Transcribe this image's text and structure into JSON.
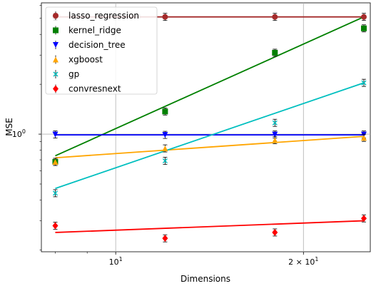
{
  "chart_data": {
    "type": "scatter",
    "xlabel": "Dimensions",
    "ylabel": "MSE",
    "x_scale": "log",
    "y_scale": "log",
    "xlim": [
      7.6,
      25.6
    ],
    "ylim": [
      0.195,
      6.2
    ],
    "x_ticks": [
      {
        "value": 10,
        "base": "10",
        "exp": "1"
      },
      {
        "value": 20,
        "base": "2 × 10",
        "exp": "1"
      }
    ],
    "y_ticks": [
      {
        "value": 1,
        "base": "10",
        "exp": "0"
      }
    ],
    "grid": true,
    "legend_position": "upper-left",
    "series": [
      {
        "name": "lasso_regression",
        "color": "#a52a2a",
        "marker": "circle",
        "x": [
          8,
          12,
          18,
          25
        ],
        "y": [
          5.1,
          5.1,
          5.1,
          5.1
        ],
        "fit": [
          5.1,
          5.1
        ]
      },
      {
        "name": "kernel_ridge",
        "color": "#008000",
        "marker": "square",
        "x": [
          8,
          12,
          18,
          25
        ],
        "y": [
          0.68,
          1.37,
          3.1,
          4.35
        ],
        "fit": [
          0.74,
          5.1
        ]
      },
      {
        "name": "decision_tree",
        "color": "#0000ff",
        "marker": "triangle-down",
        "x": [
          8,
          12,
          18,
          25
        ],
        "y": [
          0.995,
          0.99,
          0.995,
          0.995
        ],
        "fit": [
          0.99,
          0.99
        ]
      },
      {
        "name": "xgboost",
        "color": "#ffa500",
        "marker": "triangle-up",
        "x": [
          8,
          12,
          18,
          25
        ],
        "y": [
          0.68,
          0.82,
          0.92,
          0.95
        ],
        "fit": [
          0.72,
          0.97
        ]
      },
      {
        "name": "gp",
        "color": "#00bfbf",
        "marker": "x",
        "x": [
          8,
          12,
          18,
          25
        ],
        "y": [
          0.44,
          0.69,
          1.17,
          2.04
        ],
        "fit": [
          0.47,
          2.04
        ]
      },
      {
        "name": "convresnext",
        "color": "#ff0000",
        "marker": "diamond",
        "x": [
          8,
          12,
          18,
          25
        ],
        "y": [
          0.28,
          0.235,
          0.255,
          0.31
        ],
        "fit": [
          0.255,
          0.3
        ]
      }
    ]
  }
}
